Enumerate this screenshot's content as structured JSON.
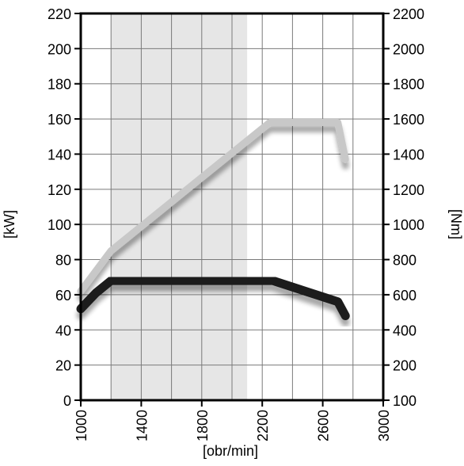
{
  "chart_data": {
    "type": "line",
    "title": "",
    "xlabel": "[obr/min]",
    "ylabel_left": "[kW]",
    "ylabel_right": "[Nm]",
    "xlim": [
      1000,
      3000
    ],
    "ylim_left": [
      0,
      220
    ],
    "ylim_right": [
      100,
      2200
    ],
    "x_ticks": [
      1000,
      1400,
      1800,
      2200,
      2600,
      3000
    ],
    "x_ticks_labels": [
      "1000",
      "1400",
      "1800",
      "2200",
      "2600",
      "3000"
    ],
    "y_left_ticks": [
      0,
      20,
      40,
      60,
      80,
      100,
      120,
      140,
      160,
      180,
      200,
      220
    ],
    "y_left_ticks_labels": [
      "0",
      "20",
      "40",
      "60",
      "80",
      "100",
      "120",
      "140",
      "160",
      "180",
      "200",
      "220"
    ],
    "y_right_ticks": [
      100,
      200,
      400,
      600,
      800,
      1000,
      1200,
      1400,
      1600,
      1800,
      2000,
      2200
    ],
    "y_right_ticks_labels": [
      "100",
      "200",
      "400",
      "600",
      "800",
      "1000",
      "1200",
      "1400",
      "1600",
      "1800",
      "2000",
      "2200"
    ],
    "grid": true,
    "shaded_band": [
      1200,
      2100
    ],
    "series": [
      {
        "axis": "left",
        "color": "#c8c8c8",
        "x": [
          1000,
          1200,
          2250,
          2700,
          2750
        ],
        "y": [
          62,
          85,
          158,
          158,
          137
        ]
      },
      {
        "axis": "right",
        "color": "#1a1a1a",
        "x": [
          1000,
          1100,
          1200,
          2200,
          2270,
          2700,
          2750
        ],
        "y": [
          520,
          610,
          680,
          680,
          680,
          560,
          480
        ]
      }
    ]
  }
}
